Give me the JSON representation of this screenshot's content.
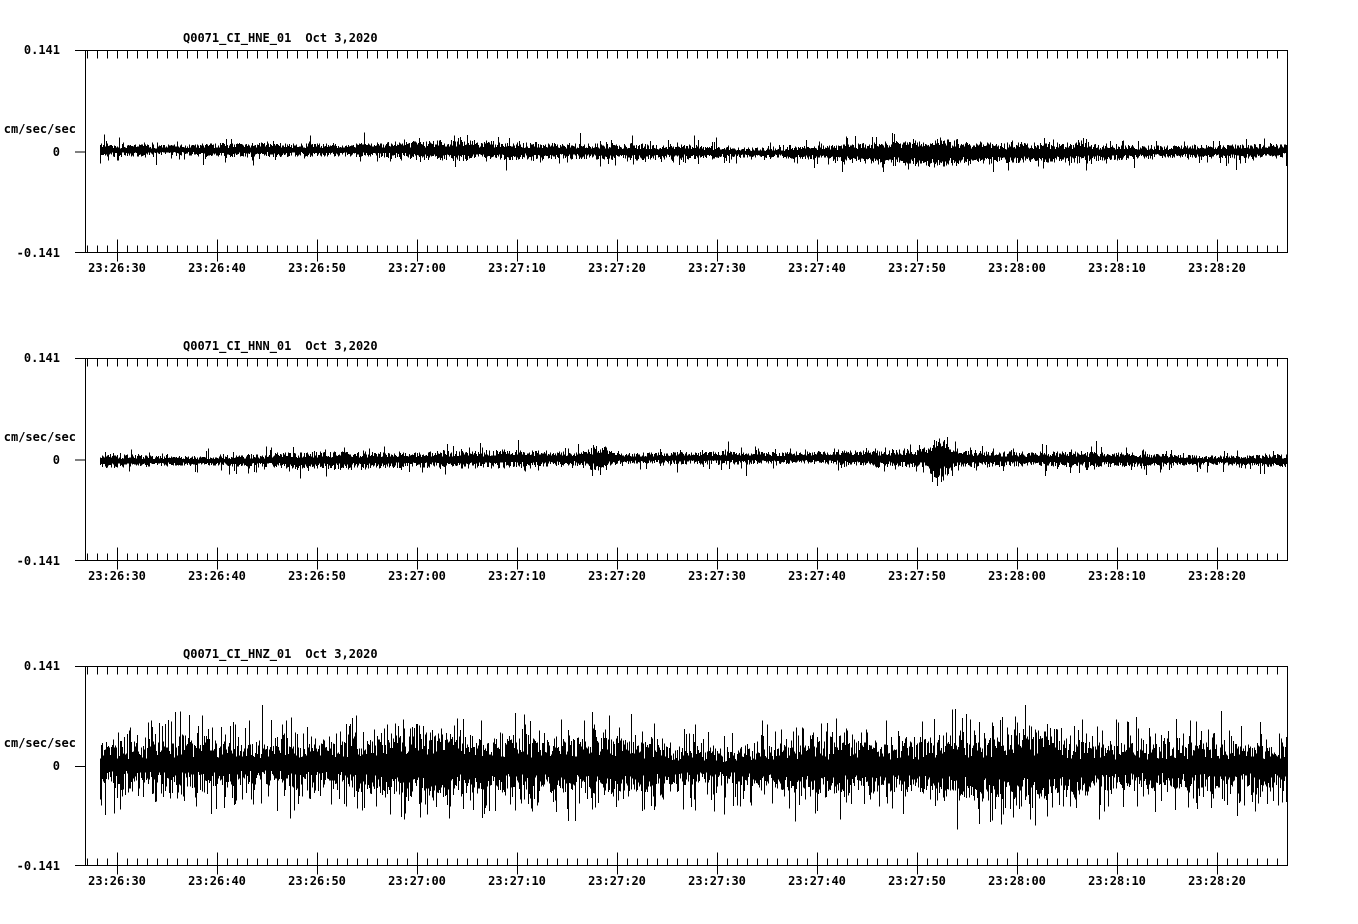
{
  "figure": {
    "background": "#ffffff",
    "trace_color": "#000000",
    "axis_color": "#000000"
  },
  "chart_data": [
    {
      "type": "line",
      "subtype": "seismogram",
      "title": "Q0071_CI_HNE_01",
      "date": "Oct 3,2020",
      "ylabel": "cm/sec/sec",
      "ytick_labels": [
        "0.141",
        "0",
        "-0.141"
      ],
      "ylim": [
        -0.141,
        0.141
      ],
      "xtick_labels": [
        "23:26:30",
        "23:26:40",
        "23:26:50",
        "23:27:00",
        "23:27:10",
        "23:27:20",
        "23:27:30",
        "23:27:40",
        "23:27:50",
        "23:28:00",
        "23:28:10",
        "23:28:20"
      ],
      "xtick_interval_seconds": 10,
      "grid": false,
      "legend": false,
      "noise": {
        "mean": 0,
        "band_amp": 0.0112,
        "spike_amp": 0.019,
        "spike_prob": 0.1,
        "seed": 11,
        "events": [
          {
            "pos": 0.7,
            "amp": 0.01,
            "width": 0.035
          }
        ]
      }
    },
    {
      "type": "line",
      "subtype": "seismogram",
      "title": "Q0071_CI_HNN_01",
      "date": "Oct 3,2020",
      "ylabel": "cm/sec/sec",
      "ytick_labels": [
        "0.141",
        "0",
        "-0.141"
      ],
      "ylim": [
        -0.141,
        0.141
      ],
      "xtick_labels": [
        "23:26:30",
        "23:26:40",
        "23:26:50",
        "23:27:00",
        "23:27:10",
        "23:27:20",
        "23:27:30",
        "23:27:40",
        "23:27:50",
        "23:28:00",
        "23:28:10",
        "23:28:20"
      ],
      "xtick_interval_seconds": 10,
      "grid": false,
      "legend": false,
      "noise": {
        "mean": 0,
        "band_amp": 0.0105,
        "spike_amp": 0.018,
        "spike_prob": 0.1,
        "seed": 22,
        "events": [
          {
            "pos": 0.707,
            "amp": 0.024,
            "width": 0.006
          },
          {
            "pos": 0.42,
            "amp": 0.012,
            "width": 0.008
          }
        ]
      }
    },
    {
      "type": "line",
      "subtype": "seismogram",
      "title": "Q0071_CI_HNZ_01",
      "date": "Oct 3,2020",
      "ylabel": "cm/sec/sec",
      "ytick_labels": [
        "0.141",
        "0",
        "-0.141"
      ],
      "ylim": [
        -0.141,
        0.141
      ],
      "xtick_labels": [
        "23:26:30",
        "23:26:40",
        "23:26:50",
        "23:27:00",
        "23:27:10",
        "23:27:20",
        "23:27:30",
        "23:27:40",
        "23:27:50",
        "23:28:00",
        "23:28:10",
        "23:28:20"
      ],
      "xtick_interval_seconds": 10,
      "grid": false,
      "legend": false,
      "noise": {
        "mean": 0,
        "band_amp": 0.036,
        "spike_amp": 0.056,
        "spike_prob": 0.38,
        "seed": 33,
        "events": []
      }
    }
  ]
}
